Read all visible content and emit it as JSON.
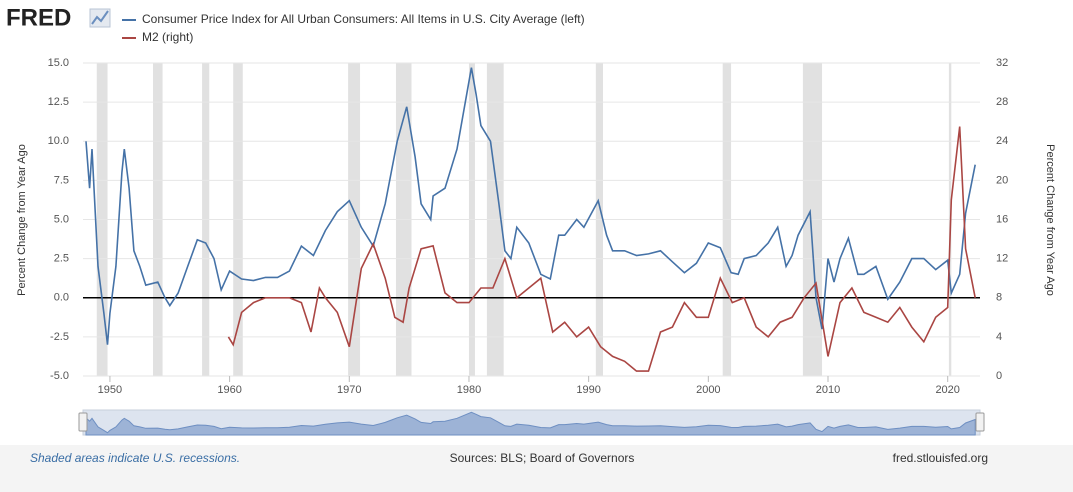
{
  "logo": "FRED",
  "chart_data": {
    "type": "line",
    "left_axis_label": "Percent Change from Year Ago",
    "right_axis_label": "Percent Change from Year Ago",
    "xlim": [
      1947.75,
      2022.7
    ],
    "xticks": [
      1950,
      1960,
      1970,
      1980,
      1990,
      2000,
      2010,
      2020
    ],
    "ylim": [
      -5,
      15
    ],
    "yticks": [
      {
        "value": -5,
        "label": "-5.0"
      },
      {
        "value": -2.5,
        "label": "-2.5"
      },
      {
        "value": 0,
        "label": "0.0"
      },
      {
        "value": 2.5,
        "label": "2.5"
      },
      {
        "value": 5,
        "label": "5.0"
      },
      {
        "value": 7.5,
        "label": "7.5"
      },
      {
        "value": 10,
        "label": "10.0"
      },
      {
        "value": 12.5,
        "label": "12.5"
      },
      {
        "value": 15,
        "label": "15.0"
      }
    ],
    "y2lim": [
      0,
      32
    ],
    "y2ticks": [
      0,
      4,
      8,
      12,
      16,
      20,
      24,
      28,
      32
    ],
    "recessions": [
      [
        1948.9,
        1949.8
      ],
      [
        1953.6,
        1954.4
      ],
      [
        1957.7,
        1958.3
      ],
      [
        1960.3,
        1961.1
      ],
      [
        1969.9,
        1970.9
      ],
      [
        1973.9,
        1975.2
      ],
      [
        1980.0,
        1980.5
      ],
      [
        1981.5,
        1982.9
      ],
      [
        1990.6,
        1991.2
      ],
      [
        2001.2,
        2001.9
      ],
      [
        2007.9,
        2009.5
      ],
      [
        2020.1,
        2020.3
      ]
    ],
    "series": [
      {
        "name": "Consumer Price Index for All Urban Consumers: All Items in U.S. City Average (left)",
        "color": "#4572a7",
        "axis": "y",
        "x": [
          1948,
          1948.3,
          1948.5,
          1949,
          1949.5,
          1949.8,
          1950,
          1950.5,
          1951,
          1951.2,
          1951.6,
          1952,
          1952.5,
          1953,
          1954,
          1954.6,
          1955,
          1955.7,
          1956.5,
          1957.3,
          1958,
          1958.7,
          1959.3,
          1960,
          1961,
          1962,
          1963,
          1964,
          1965,
          1966,
          1967,
          1968,
          1969,
          1970,
          1971,
          1972,
          1973,
          1973.5,
          1974,
          1974.8,
          1975.5,
          1976,
          1976.8,
          1977,
          1978,
          1979,
          1980.2,
          1980.6,
          1981,
          1981.8,
          1982.5,
          1983,
          1983.5,
          1984,
          1985,
          1986,
          1986.8,
          1987.5,
          1988,
          1989,
          1989.6,
          1990.8,
          1991.5,
          1992,
          1993,
          1994,
          1995,
          1996,
          1997,
          1998,
          1999,
          2000,
          2001,
          2001.9,
          2002.5,
          2003,
          2004,
          2005,
          2005.8,
          2006.5,
          2007,
          2007.5,
          2008.5,
          2009,
          2009.5,
          2010,
          2010.5,
          2011,
          2011.7,
          2012.5,
          2013,
          2014,
          2015,
          2016,
          2017,
          2018,
          2019,
          2020,
          2020.3,
          2021,
          2021.5,
          2022.3
        ],
        "values": [
          10,
          7,
          9.5,
          2,
          -1,
          -3,
          -1,
          2,
          8,
          9.5,
          7,
          3,
          2,
          0.8,
          1,
          0,
          -0.5,
          0.3,
          2,
          3.7,
          3.5,
          2.5,
          0.5,
          1.7,
          1.2,
          1.1,
          1.3,
          1.3,
          1.7,
          3.3,
          2.7,
          4.3,
          5.5,
          6.2,
          4.5,
          3.3,
          6,
          8,
          10,
          12.2,
          9,
          6,
          5,
          6.5,
          7,
          9.5,
          14.7,
          13,
          11,
          10,
          6,
          3,
          2.5,
          4.5,
          3.5,
          1.5,
          1.2,
          4,
          4,
          5,
          4.5,
          6.2,
          4,
          3,
          3,
          2.7,
          2.8,
          3,
          2.3,
          1.6,
          2.2,
          3.5,
          3.2,
          1.6,
          1.5,
          2.5,
          2.7,
          3.5,
          4.5,
          2,
          2.7,
          4,
          5.5,
          0,
          -2,
          2.5,
          1,
          2.5,
          3.8,
          1.5,
          1.5,
          2,
          -0.1,
          1,
          2.5,
          2.5,
          1.8,
          2.4,
          0.3,
          1.5,
          5.4,
          8.5
        ]
      },
      {
        "name": "M2 (right)",
        "color": "#aa4643",
        "axis": "y2",
        "x": [
          1959.9,
          1960.3,
          1961,
          1962,
          1963,
          1964,
          1965,
          1966,
          1966.8,
          1967.5,
          1968,
          1969,
          1970,
          1971,
          1972,
          1973,
          1973.8,
          1974.5,
          1975,
          1976,
          1977,
          1978,
          1979,
          1980,
          1981,
          1982,
          1983,
          1984,
          1985,
          1986,
          1987,
          1988,
          1989,
          1990,
          1991,
          1992,
          1993,
          1994,
          1995,
          1996,
          1997,
          1998,
          1999,
          2000,
          2001,
          2002,
          2003,
          2004,
          2005,
          2006,
          2007,
          2008,
          2009,
          2010,
          2011,
          2012,
          2013,
          2014,
          2015,
          2016,
          2017,
          2018,
          2019,
          2020,
          2020.3,
          2021,
          2021.5,
          2022.3
        ],
        "values": [
          4,
          3.2,
          6.5,
          7.5,
          8,
          8,
          8,
          7.5,
          4.5,
          9,
          8,
          6.5,
          3,
          11,
          13.5,
          10,
          6,
          5.5,
          9,
          13,
          13.3,
          8.5,
          7.5,
          7.5,
          9,
          9,
          12,
          8,
          9,
          10,
          4.5,
          5.5,
          4,
          5,
          3,
          2,
          1.5,
          0.5,
          0.5,
          4.5,
          5,
          7.5,
          6,
          6,
          10,
          7.5,
          8,
          5,
          4,
          5.5,
          6,
          8,
          9.5,
          2,
          7.5,
          9,
          6.5,
          6,
          5.5,
          7,
          5,
          3.5,
          6,
          7,
          18,
          25.5,
          13,
          8
        ]
      }
    ]
  },
  "footer": {
    "note": "Shaded areas indicate U.S. recessions.",
    "sources": "Sources: BLS; Board of Governors",
    "site": "fred.stlouisfed.org"
  }
}
